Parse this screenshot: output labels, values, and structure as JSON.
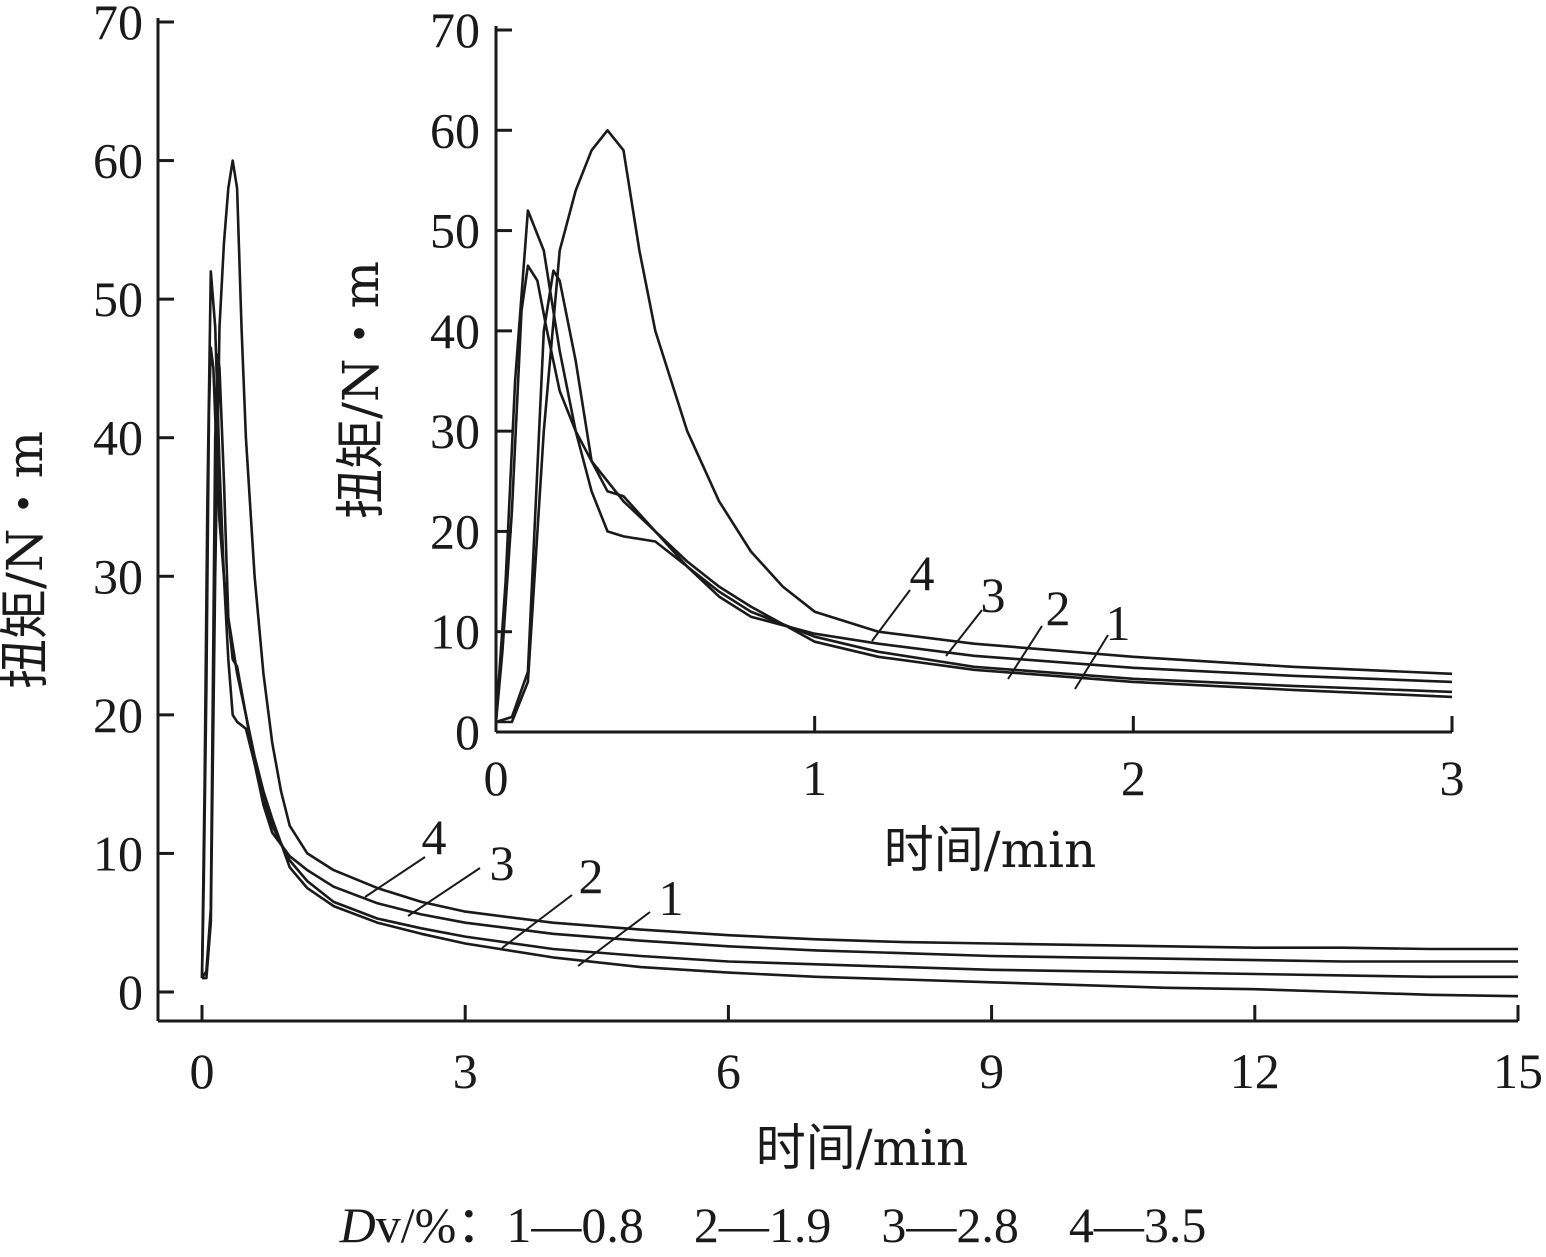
{
  "chart_data": [
    {
      "type": "line",
      "id": "main",
      "title": "",
      "xlabel": "时间/min",
      "ylabel": "扭矩/N・m",
      "xlim": [
        0,
        15
      ],
      "ylim": [
        0,
        70
      ],
      "xticks": [
        0,
        3,
        6,
        9,
        12,
        15
      ],
      "yticks": [
        0,
        10,
        20,
        30,
        40,
        50,
        60,
        70
      ],
      "grid": false,
      "series": [
        {
          "name": "1",
          "x": [
            0,
            0.02,
            0.05,
            0.08,
            0.1,
            0.13,
            0.16,
            0.2,
            0.25,
            0.3,
            0.4,
            0.5,
            0.6,
            0.7,
            0.8,
            1.0,
            1.2,
            1.5,
            2,
            2.5,
            3,
            4,
            5,
            6,
            7,
            8,
            9,
            10,
            11,
            12,
            13,
            14,
            15
          ],
          "y": [
            1,
            8,
            22,
            42,
            46.5,
            45,
            40,
            34,
            30,
            27,
            23,
            20,
            17,
            14.5,
            12.5,
            9,
            7.5,
            6.2,
            5,
            4.2,
            3.5,
            2.5,
            1.8,
            1.4,
            1.1,
            0.9,
            0.7,
            0.5,
            0.3,
            0.2,
            0,
            -0.2,
            -0.3
          ]
        },
        {
          "name": "2",
          "x": [
            0,
            0.03,
            0.06,
            0.1,
            0.15,
            0.2,
            0.25,
            0.3,
            0.35,
            0.4,
            0.5,
            0.6,
            0.7,
            0.8,
            1.0,
            1.2,
            1.5,
            2,
            2.5,
            3,
            4,
            5,
            6,
            7,
            8,
            9,
            10,
            11,
            12,
            13,
            14,
            15
          ],
          "y": [
            1,
            15,
            35,
            52,
            48,
            38,
            30,
            24,
            20,
            19.5,
            19,
            16.5,
            14,
            12,
            9.5,
            8,
            6.5,
            5.3,
            4.6,
            4,
            3.1,
            2.6,
            2.2,
            2,
            1.8,
            1.6,
            1.5,
            1.4,
            1.3,
            1.2,
            1.1,
            1.1
          ]
        },
        {
          "name": "3",
          "x": [
            0,
            0.05,
            0.1,
            0.15,
            0.18,
            0.2,
            0.25,
            0.3,
            0.35,
            0.4,
            0.5,
            0.6,
            0.7,
            0.8,
            1.0,
            1.2,
            1.5,
            2,
            2.5,
            3,
            4,
            5,
            6,
            7,
            8,
            9,
            10,
            11,
            12,
            13,
            14,
            15
          ],
          "y": [
            1,
            1.5,
            6,
            40,
            46,
            45,
            37,
            27,
            24,
            23.5,
            20,
            16.5,
            13.5,
            11.5,
            9.8,
            8.8,
            7.6,
            6.4,
            5.6,
            5,
            4.2,
            3.7,
            3.3,
            3,
            2.8,
            2.6,
            2.5,
            2.4,
            2.3,
            2.2,
            2.2,
            2.2
          ]
        },
        {
          "name": "4",
          "x": [
            0,
            0.05,
            0.1,
            0.15,
            0.2,
            0.25,
            0.3,
            0.35,
            0.4,
            0.45,
            0.5,
            0.6,
            0.7,
            0.8,
            0.9,
            1.0,
            1.2,
            1.5,
            2,
            2.5,
            3,
            4,
            5,
            6,
            7,
            8,
            9,
            10,
            11,
            12,
            13,
            14,
            15
          ],
          "y": [
            1,
            1,
            5,
            30,
            48,
            54,
            58,
            60,
            58,
            48,
            40,
            30,
            23,
            18,
            14.5,
            12,
            10,
            8.8,
            7.5,
            6.5,
            5.8,
            5,
            4.5,
            4.1,
            3.8,
            3.6,
            3.5,
            3.4,
            3.3,
            3.2,
            3.2,
            3.1,
            3.1
          ]
        }
      ]
    },
    {
      "type": "line",
      "id": "inset",
      "title": "",
      "xlabel": "时间/min",
      "ylabel": "扭矩/N・m",
      "xlim": [
        0,
        3
      ],
      "ylim": [
        0,
        70
      ],
      "xticks": [
        0,
        1,
        2,
        3
      ],
      "yticks": [
        0,
        10,
        20,
        30,
        40,
        50,
        60,
        70
      ],
      "grid": false,
      "series": [
        {
          "name": "1",
          "x": [
            0,
            0.02,
            0.05,
            0.08,
            0.1,
            0.13,
            0.16,
            0.2,
            0.25,
            0.3,
            0.4,
            0.5,
            0.6,
            0.7,
            0.8,
            1.0,
            1.2,
            1.5,
            2,
            2.5,
            3
          ],
          "y": [
            1,
            8,
            22,
            42,
            46.5,
            45,
            40,
            34,
            30,
            27,
            23,
            20,
            17,
            14.5,
            12.5,
            9,
            7.5,
            6.2,
            5,
            4.2,
            3.5
          ]
        },
        {
          "name": "2",
          "x": [
            0,
            0.03,
            0.06,
            0.1,
            0.15,
            0.2,
            0.25,
            0.3,
            0.35,
            0.4,
            0.5,
            0.6,
            0.7,
            0.8,
            1.0,
            1.2,
            1.5,
            2,
            2.5,
            3
          ],
          "y": [
            1,
            15,
            35,
            52,
            48,
            38,
            30,
            24,
            20,
            19.5,
            19,
            16.5,
            14,
            12,
            9.5,
            8,
            6.5,
            5.3,
            4.6,
            4
          ]
        },
        {
          "name": "3",
          "x": [
            0,
            0.05,
            0.1,
            0.15,
            0.18,
            0.2,
            0.25,
            0.3,
            0.35,
            0.4,
            0.5,
            0.6,
            0.7,
            0.8,
            1.0,
            1.2,
            1.5,
            2,
            2.5,
            3
          ],
          "y": [
            1,
            1.5,
            6,
            40,
            46,
            45,
            37,
            27,
            24,
            23.5,
            20,
            16.5,
            13.5,
            11.5,
            9.8,
            8.8,
            7.6,
            6.4,
            5.6,
            5
          ]
        },
        {
          "name": "4",
          "x": [
            0,
            0.05,
            0.1,
            0.15,
            0.2,
            0.25,
            0.3,
            0.35,
            0.4,
            0.45,
            0.5,
            0.6,
            0.7,
            0.8,
            0.9,
            1.0,
            1.2,
            1.5,
            2,
            2.5,
            3
          ],
          "y": [
            1,
            1,
            5,
            30,
            48,
            54,
            58,
            60,
            58,
            48,
            40,
            30,
            23,
            18,
            14.5,
            12,
            10,
            8.8,
            7.5,
            6.5,
            5.8
          ]
        }
      ]
    }
  ],
  "legend": {
    "var": "D",
    "var_sub": "v",
    "unit": "/%：",
    "items": "1—0.8    2—1.9    3—2.8    4—3.5"
  }
}
